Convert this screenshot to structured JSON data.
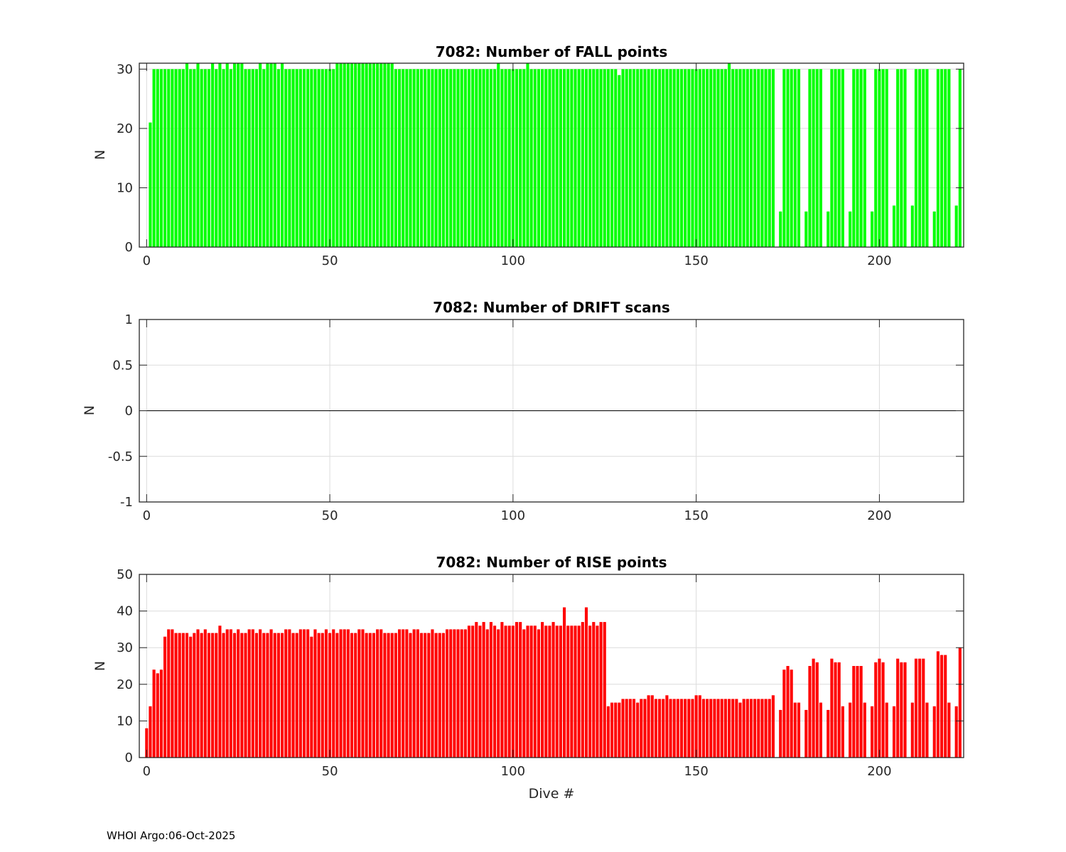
{
  "footer": "WHOI Argo:06-Oct-2025",
  "colors": {
    "fall": "#00ff00",
    "rise": "#ff0000",
    "grid": "#dcdcdc",
    "axis": "#262626"
  },
  "chart_data": [
    {
      "type": "bar",
      "title": "7082: Number of FALL points",
      "xlabel": "",
      "ylabel": "N",
      "xlim": [
        -2,
        223
      ],
      "ylim": [
        0,
        31
      ],
      "xticks": [
        0,
        50,
        100,
        150,
        200
      ],
      "yticks": [
        0,
        10,
        20,
        30
      ],
      "grid": true,
      "x_start": 0,
      "values": [
        0,
        21,
        30,
        30,
        30,
        30,
        30,
        30,
        30,
        30,
        30,
        31,
        30,
        30,
        31,
        30,
        30,
        30,
        31,
        30,
        31,
        30,
        31,
        30,
        31,
        31,
        31,
        30,
        30,
        30,
        30,
        31,
        30,
        31,
        31,
        31,
        30,
        31,
        30,
        30,
        30,
        30,
        30,
        30,
        30,
        30,
        30,
        30,
        30,
        30,
        30,
        30,
        31,
        31,
        31,
        31,
        31,
        31,
        31,
        31,
        31,
        31,
        31,
        31,
        31,
        31,
        31,
        31,
        30,
        30,
        30,
        30,
        30,
        30,
        30,
        30,
        30,
        30,
        30,
        30,
        30,
        30,
        30,
        30,
        30,
        30,
        30,
        30,
        30,
        30,
        30,
        30,
        30,
        30,
        30,
        30,
        31,
        30,
        30,
        30,
        30,
        30,
        30,
        30,
        31,
        30,
        30,
        30,
        30,
        30,
        30,
        30,
        30,
        30,
        30,
        30,
        30,
        30,
        30,
        30,
        30,
        30,
        30,
        30,
        30,
        30,
        30,
        30,
        30,
        29,
        30,
        30,
        30,
        30,
        30,
        30,
        30,
        30,
        30,
        30,
        30,
        30,
        30,
        30,
        30,
        30,
        30,
        30,
        30,
        30,
        30,
        30,
        30,
        30,
        30,
        30,
        30,
        30,
        30,
        31,
        30,
        30,
        30,
        30,
        30,
        30,
        30,
        30,
        30,
        30,
        30,
        30,
        0,
        6,
        30,
        30,
        30,
        30,
        30,
        0,
        6,
        30,
        30,
        30,
        30,
        0,
        6,
        30,
        30,
        30,
        30,
        0,
        6,
        30,
        30,
        30,
        30,
        0,
        6,
        30,
        30,
        30,
        30,
        0,
        7,
        30,
        30,
        30,
        0,
        7,
        30,
        30,
        30,
        30,
        0,
        6,
        30,
        30,
        30,
        30,
        0,
        7,
        30
      ]
    },
    {
      "type": "bar",
      "title": "7082: Number of DRIFT scans",
      "xlabel": "",
      "ylabel": "N",
      "xlim": [
        -2,
        223
      ],
      "ylim": [
        -1,
        1
      ],
      "xticks": [
        0,
        50,
        100,
        150,
        200
      ],
      "yticks": [
        -1,
        -0.5,
        0,
        0.5,
        1
      ],
      "grid": true,
      "values": []
    },
    {
      "type": "bar",
      "title": "7082: Number of RISE points",
      "xlabel": "Dive #",
      "ylabel": "N",
      "xlim": [
        -2,
        223
      ],
      "ylim": [
        0,
        50
      ],
      "xticks": [
        0,
        50,
        100,
        150,
        200
      ],
      "yticks": [
        0,
        10,
        20,
        30,
        40,
        50
      ],
      "grid": true,
      "x_start": 0,
      "values": [
        8,
        14,
        24,
        23,
        24,
        33,
        35,
        35,
        34,
        34,
        34,
        34,
        33,
        34,
        35,
        34,
        35,
        34,
        34,
        34,
        36,
        34,
        35,
        35,
        34,
        35,
        34,
        34,
        35,
        35,
        34,
        35,
        34,
        34,
        35,
        34,
        34,
        34,
        35,
        35,
        34,
        34,
        35,
        35,
        35,
        33,
        35,
        34,
        34,
        35,
        34,
        35,
        34,
        35,
        35,
        35,
        34,
        34,
        35,
        35,
        34,
        34,
        34,
        35,
        35,
        34,
        34,
        34,
        34,
        35,
        35,
        35,
        34,
        35,
        35,
        34,
        34,
        34,
        35,
        34,
        34,
        34,
        35,
        35,
        35,
        35,
        35,
        35,
        36,
        36,
        37,
        36,
        37,
        35,
        37,
        36,
        35,
        37,
        36,
        36,
        36,
        37,
        37,
        35,
        36,
        36,
        36,
        35,
        37,
        36,
        36,
        37,
        36,
        36,
        41,
        36,
        36,
        36,
        36,
        37,
        41,
        36,
        37,
        36,
        37,
        37,
        14,
        15,
        15,
        15,
        16,
        16,
        16,
        16,
        15,
        16,
        16,
        17,
        17,
        16,
        16,
        16,
        17,
        16,
        16,
        16,
        16,
        16,
        16,
        16,
        17,
        17,
        16,
        16,
        16,
        16,
        16,
        16,
        16,
        16,
        16,
        16,
        15,
        16,
        16,
        16,
        16,
        16,
        16,
        16,
        16,
        17,
        0,
        13,
        24,
        25,
        24,
        15,
        15,
        0,
        13,
        25,
        27,
        26,
        15,
        0,
        13,
        27,
        26,
        26,
        14,
        0,
        15,
        25,
        25,
        25,
        15,
        0,
        14,
        26,
        27,
        26,
        15,
        0,
        14,
        27,
        26,
        26,
        0,
        15,
        27,
        27,
        27,
        15,
        0,
        14,
        29,
        28,
        28,
        15,
        0,
        14,
        30
      ]
    }
  ]
}
